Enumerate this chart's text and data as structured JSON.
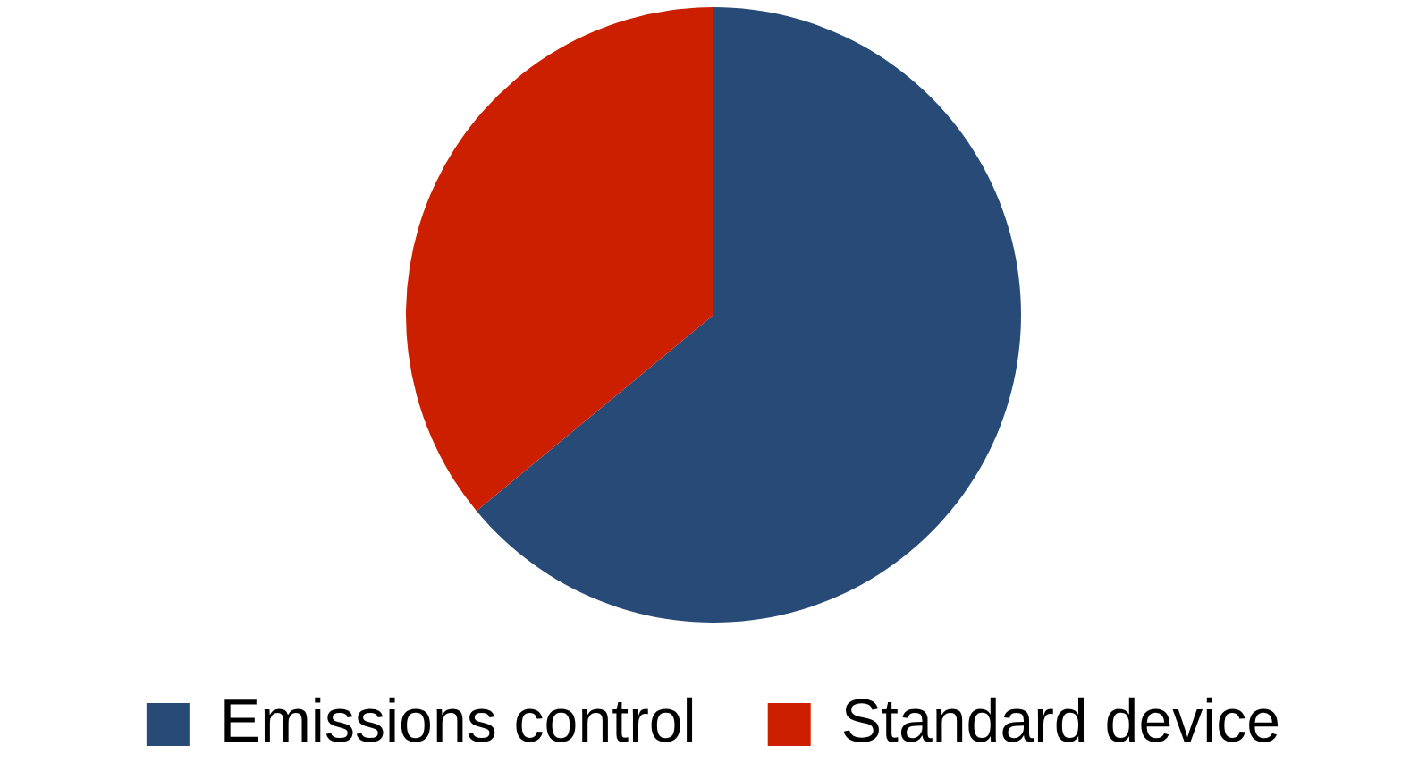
{
  "chart_data": {
    "type": "pie",
    "categories": [
      "Emissions control",
      "Standard device"
    ],
    "values": [
      64,
      36
    ],
    "colors": [
      "#284a76",
      "#cc1f00"
    ],
    "legend": "bottom"
  }
}
